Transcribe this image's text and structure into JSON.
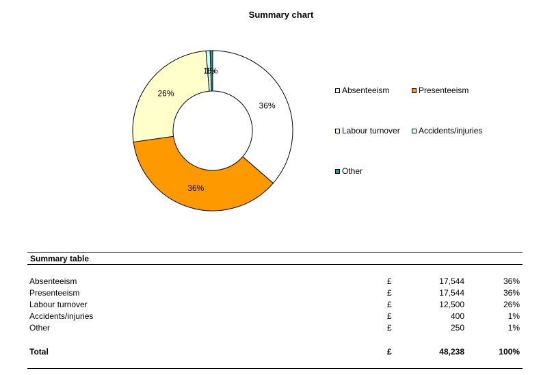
{
  "chart_data": {
    "type": "pie",
    "title": "Summary chart",
    "hole": true,
    "categories": [
      "Absenteeism",
      "Presenteeism",
      "Labour turnover",
      "Accidents/injuries",
      "Other"
    ],
    "values": [
      17544,
      17544,
      12500,
      400,
      250
    ],
    "data_labels": [
      "36%",
      "36%",
      "26%",
      "1%",
      "1%"
    ],
    "colors": [
      "#FFFFFF",
      "#FF9900",
      "#FFFFCC",
      "#CCFFFF",
      "#339999"
    ],
    "legend_position": "right"
  },
  "table": {
    "title": "Summary table",
    "rows": [
      {
        "label": "Absenteeism",
        "currency": "£",
        "amount": "17,544",
        "percent": "36%"
      },
      {
        "label": "Presenteeism",
        "currency": "£",
        "amount": "17,544",
        "percent": "36%"
      },
      {
        "label": "Labour turnover",
        "currency": "£",
        "amount": "12,500",
        "percent": "26%"
      },
      {
        "label": "Accidents/injuries",
        "currency": "£",
        "amount": "400",
        "percent": "1%"
      },
      {
        "label": "Other",
        "currency": "£",
        "amount": "250",
        "percent": "1%"
      }
    ],
    "total": {
      "label": "Total",
      "currency": "£",
      "amount": "48,238",
      "percent": "100%"
    }
  }
}
